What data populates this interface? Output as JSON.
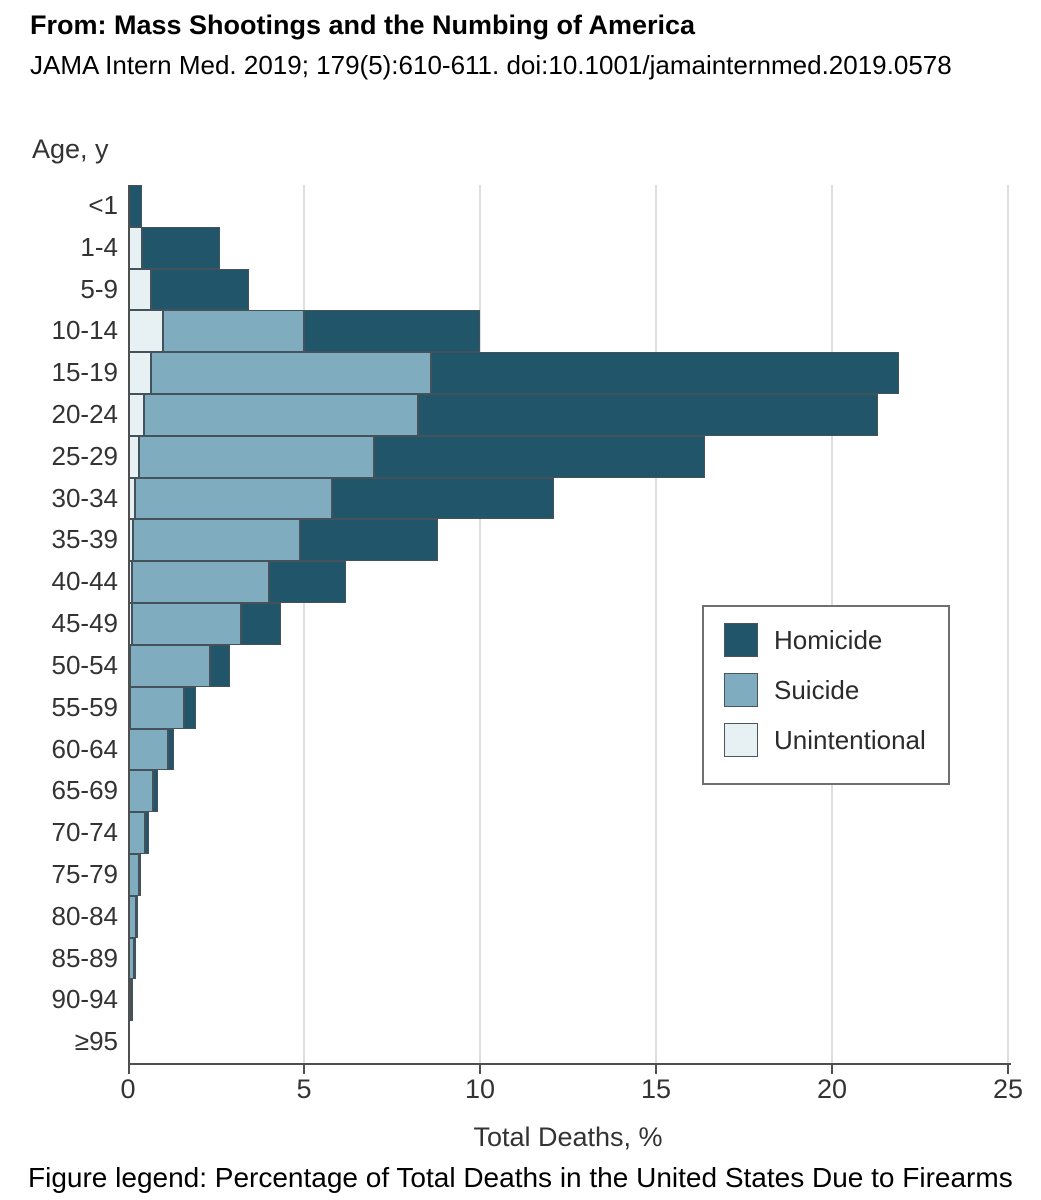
{
  "header": {
    "title": "From: Mass Shootings and the Numbing of America",
    "citation": "JAMA Intern Med. 2019; 179(5):610-611. doi:10.1001/jamainternmed.2019.0578"
  },
  "caption": "Figure legend: Percentage of Total Deaths in the United States Due to Firearms",
  "legend": {
    "items": [
      {
        "label": "Homicide",
        "color": "#21566A"
      },
      {
        "label": "Suicide",
        "color": "#80ACBF"
      },
      {
        "label": "Unintentional",
        "color": "#E7F0F3"
      }
    ]
  },
  "colors": {
    "homicide": "#21566A",
    "suicide": "#80ACBF",
    "unintentional": "#E7F0F3",
    "bar_border": "#44525C",
    "gridline": "#DEDEDE",
    "axis": "#4F4F4F",
    "label_text": "#333333"
  },
  "chart_data": {
    "type": "bar",
    "orientation": "horizontal",
    "stacked": true,
    "title": "",
    "xlabel": "Total Deaths, %",
    "ylabel": "Age, y",
    "xlim": [
      0,
      25
    ],
    "xticks": [
      0,
      5,
      10,
      15,
      20,
      25
    ],
    "grid": "vertical",
    "legend_position": "inside-right",
    "categories": [
      "<1",
      "1-4",
      "5-9",
      "10-14",
      "15-19",
      "20-24",
      "25-29",
      "30-34",
      "35-39",
      "40-44",
      "45-49",
      "50-54",
      "55-59",
      "60-64",
      "65-69",
      "70-74",
      "75-79",
      "80-84",
      "85-89",
      "90-94",
      "≥95"
    ],
    "series": [
      {
        "name": "Unintentional",
        "color": "#E7F0F3",
        "values": [
          0,
          0.4,
          0.65,
          1.0,
          0.65,
          0.45,
          0.3,
          0.2,
          0.15,
          0.1,
          0.1,
          0.07,
          0.05,
          0.04,
          0.03,
          0.03,
          0.02,
          0.02,
          0.01,
          0.01,
          0
        ]
      },
      {
        "name": "Suicide",
        "color": "#80ACBF",
        "values": [
          0,
          0,
          0,
          4.0,
          7.95,
          7.8,
          6.7,
          5.6,
          4.75,
          3.9,
          3.1,
          2.25,
          1.53,
          1.09,
          0.67,
          0.45,
          0.3,
          0.22,
          0.17,
          0.08,
          0.02
        ]
      },
      {
        "name": "Homicide",
        "color": "#21566A",
        "values": [
          0.4,
          2.2,
          2.8,
          5.0,
          13.3,
          13.05,
          9.4,
          6.3,
          3.9,
          2.2,
          1.15,
          0.58,
          0.35,
          0.17,
          0.14,
          0.11,
          0.05,
          0.03,
          0.03,
          0.02,
          0
        ]
      }
    ],
    "totals": [
      0.4,
      2.6,
      3.45,
      10.0,
      21.9,
      21.3,
      16.4,
      12.1,
      8.8,
      6.2,
      4.35,
      2.9,
      1.93,
      1.3,
      0.84,
      0.59,
      0.37,
      0.27,
      0.21,
      0.11,
      0.02
    ]
  }
}
